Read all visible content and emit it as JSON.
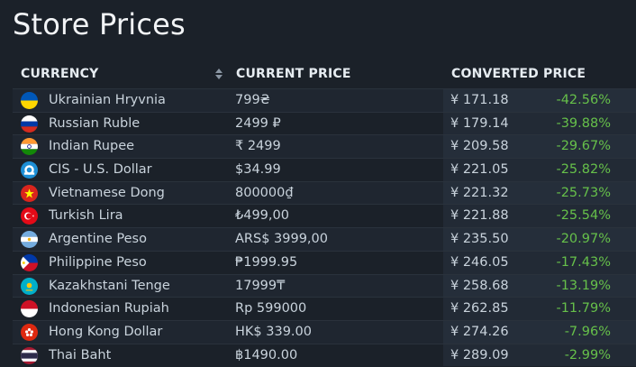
{
  "page": {
    "title": "Store Prices"
  },
  "table": {
    "headers": {
      "currency": "CURRENCY",
      "current_price": "CURRENT PRICE",
      "converted_price": "CONVERTED PRICE"
    },
    "rows": [
      {
        "currency": "Ukrainian Hryvnia",
        "flag": "ua-flag-icon",
        "price": "799₴",
        "converted": "¥ 171.18",
        "diff": "-42.56%"
      },
      {
        "currency": "Russian Ruble",
        "flag": "ru-flag-icon",
        "price": "2499 ₽",
        "converted": "¥ 179.14",
        "diff": "-39.88%"
      },
      {
        "currency": "Indian Rupee",
        "flag": "in-flag-icon",
        "price": "₹ 2499",
        "converted": "¥ 209.58",
        "diff": "-29.67%"
      },
      {
        "currency": "CIS - U.S. Dollar",
        "flag": "cis-emblem-icon",
        "price": "$34.99",
        "converted": "¥ 221.05",
        "diff": "-25.82%"
      },
      {
        "currency": "Vietnamese Dong",
        "flag": "vn-flag-icon",
        "price": "800000₫",
        "converted": "¥ 221.32",
        "diff": "-25.73%"
      },
      {
        "currency": "Turkish Lira",
        "flag": "tr-flag-icon",
        "price": "₺499,00",
        "converted": "¥ 221.88",
        "diff": "-25.54%"
      },
      {
        "currency": "Argentine Peso",
        "flag": "ar-flag-icon",
        "price": "ARS$ 3999,00",
        "converted": "¥ 235.50",
        "diff": "-20.97%"
      },
      {
        "currency": "Philippine Peso",
        "flag": "ph-flag-icon",
        "price": "₱1999.95",
        "converted": "¥ 246.05",
        "diff": "-17.43%"
      },
      {
        "currency": "Kazakhstani Tenge",
        "flag": "kz-flag-icon",
        "price": "17999₸",
        "converted": "¥ 258.68",
        "diff": "-13.19%"
      },
      {
        "currency": "Indonesian Rupiah",
        "flag": "id-flag-icon",
        "price": "Rp 599000",
        "converted": "¥ 262.85",
        "diff": "-11.79%"
      },
      {
        "currency": "Hong Kong Dollar",
        "flag": "hk-flag-icon",
        "price": "HK$ 339.00",
        "converted": "¥ 274.26",
        "diff": "-7.96%"
      },
      {
        "currency": "Thai Baht",
        "flag": "th-flag-icon",
        "price": "฿1490.00",
        "converted": "¥ 289.09",
        "diff": "-2.99%"
      }
    ]
  },
  "colors": {
    "background": "#1b2129",
    "positive_diff": "#66c04a",
    "header_text": "#e6ecf1"
  },
  "icons": {
    "sort": "sort-icon"
  }
}
